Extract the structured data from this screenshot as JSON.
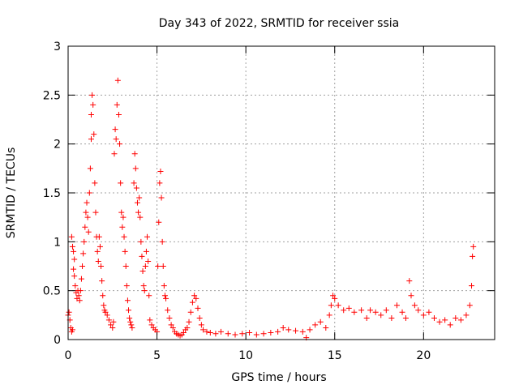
{
  "chart_data": {
    "type": "scatter",
    "title": "Day 343 of 2022, SRMTID for receiver ssia",
    "xlabel": "GPS time / hours",
    "ylabel": "SRMTID / TECUs",
    "xlim": [
      0,
      24
    ],
    "ylim": [
      0,
      3
    ],
    "x_ticks": [
      0,
      5,
      10,
      15,
      20
    ],
    "x_tick_labels": [
      "0",
      "5",
      "10",
      "15",
      "20"
    ],
    "y_ticks": [
      0,
      0.5,
      1,
      1.5,
      2,
      2.5,
      3
    ],
    "y_tick_labels": [
      "0",
      "0.5",
      "1",
      "1.5",
      "2",
      "2.5",
      "3"
    ],
    "grid": true,
    "marker": "+",
    "color": "#ff0000",
    "series": [
      {
        "name": "SRMTID",
        "points": [
          [
            0.0,
            0.25
          ],
          [
            0.05,
            0.28
          ],
          [
            0.1,
            0.2
          ],
          [
            0.15,
            0.12
          ],
          [
            0.2,
            0.08
          ],
          [
            0.25,
            0.1
          ],
          [
            0.2,
            1.05
          ],
          [
            0.25,
            0.95
          ],
          [
            0.3,
            0.9
          ],
          [
            0.35,
            0.82
          ],
          [
            0.3,
            0.72
          ],
          [
            0.35,
            0.65
          ],
          [
            0.4,
            0.55
          ],
          [
            0.45,
            0.48
          ],
          [
            0.5,
            0.42
          ],
          [
            0.55,
            0.5
          ],
          [
            0.6,
            0.45
          ],
          [
            0.65,
            0.4
          ],
          [
            0.7,
            0.5
          ],
          [
            0.75,
            0.62
          ],
          [
            0.8,
            0.75
          ],
          [
            0.85,
            0.88
          ],
          [
            0.9,
            1.0
          ],
          [
            0.95,
            1.15
          ],
          [
            1.0,
            1.3
          ],
          [
            1.05,
            1.4
          ],
          [
            1.1,
            1.25
          ],
          [
            1.15,
            1.1
          ],
          [
            1.2,
            1.5
          ],
          [
            1.25,
            1.75
          ],
          [
            1.3,
            2.05
          ],
          [
            1.3,
            2.3
          ],
          [
            1.35,
            2.5
          ],
          [
            1.4,
            2.4
          ],
          [
            1.45,
            2.1
          ],
          [
            1.5,
            1.6
          ],
          [
            1.55,
            1.3
          ],
          [
            1.6,
            1.05
          ],
          [
            1.65,
            0.9
          ],
          [
            1.7,
            0.8
          ],
          [
            1.75,
            1.05
          ],
          [
            1.8,
            0.95
          ],
          [
            1.85,
            0.75
          ],
          [
            1.9,
            0.6
          ],
          [
            1.95,
            0.45
          ],
          [
            2.0,
            0.35
          ],
          [
            2.05,
            0.3
          ],
          [
            2.1,
            0.28
          ],
          [
            2.2,
            0.25
          ],
          [
            2.3,
            0.2
          ],
          [
            2.4,
            0.15
          ],
          [
            2.5,
            0.12
          ],
          [
            2.55,
            0.18
          ],
          [
            2.6,
            1.9
          ],
          [
            2.65,
            2.15
          ],
          [
            2.7,
            2.05
          ],
          [
            2.75,
            2.4
          ],
          [
            2.8,
            2.65
          ],
          [
            2.85,
            2.3
          ],
          [
            2.9,
            2.0
          ],
          [
            2.95,
            1.6
          ],
          [
            3.0,
            1.3
          ],
          [
            3.05,
            1.15
          ],
          [
            3.1,
            1.25
          ],
          [
            3.15,
            1.05
          ],
          [
            3.2,
            0.9
          ],
          [
            3.25,
            0.75
          ],
          [
            3.3,
            0.55
          ],
          [
            3.35,
            0.4
          ],
          [
            3.4,
            0.3
          ],
          [
            3.45,
            0.22
          ],
          [
            3.5,
            0.18
          ],
          [
            3.55,
            0.15
          ],
          [
            3.6,
            0.12
          ],
          [
            3.7,
            1.6
          ],
          [
            3.75,
            1.9
          ],
          [
            3.8,
            1.75
          ],
          [
            3.85,
            1.55
          ],
          [
            3.9,
            1.4
          ],
          [
            3.95,
            1.3
          ],
          [
            4.0,
            1.45
          ],
          [
            4.05,
            1.25
          ],
          [
            4.1,
            1.0
          ],
          [
            4.15,
            0.85
          ],
          [
            4.2,
            0.7
          ],
          [
            4.25,
            0.55
          ],
          [
            4.3,
            0.5
          ],
          [
            4.35,
            0.75
          ],
          [
            4.4,
            0.9
          ],
          [
            4.45,
            1.05
          ],
          [
            4.5,
            0.8
          ],
          [
            4.55,
            0.45
          ],
          [
            4.6,
            0.2
          ],
          [
            4.7,
            0.15
          ],
          [
            4.8,
            0.12
          ],
          [
            4.9,
            0.1
          ],
          [
            5.0,
            0.08
          ],
          [
            5.05,
            0.75
          ],
          [
            5.1,
            1.2
          ],
          [
            5.15,
            1.6
          ],
          [
            5.2,
            1.72
          ],
          [
            5.25,
            1.45
          ],
          [
            5.3,
            1.0
          ],
          [
            5.35,
            0.75
          ],
          [
            5.4,
            0.55
          ],
          [
            5.45,
            0.45
          ],
          [
            5.5,
            0.42
          ],
          [
            5.6,
            0.3
          ],
          [
            5.7,
            0.22
          ],
          [
            5.8,
            0.15
          ],
          [
            5.9,
            0.12
          ],
          [
            6.0,
            0.08
          ],
          [
            6.1,
            0.06
          ],
          [
            6.2,
            0.05
          ],
          [
            6.3,
            0.04
          ],
          [
            6.4,
            0.05
          ],
          [
            6.5,
            0.07
          ],
          [
            6.6,
            0.1
          ],
          [
            6.7,
            0.12
          ],
          [
            6.8,
            0.18
          ],
          [
            6.9,
            0.28
          ],
          [
            7.0,
            0.38
          ],
          [
            7.1,
            0.45
          ],
          [
            7.2,
            0.42
          ],
          [
            7.3,
            0.32
          ],
          [
            7.4,
            0.22
          ],
          [
            7.5,
            0.15
          ],
          [
            7.6,
            0.1
          ],
          [
            7.8,
            0.08
          ],
          [
            8.0,
            0.07
          ],
          [
            8.3,
            0.06
          ],
          [
            8.6,
            0.08
          ],
          [
            9.0,
            0.06
          ],
          [
            9.4,
            0.05
          ],
          [
            9.8,
            0.06
          ],
          [
            10.2,
            0.07
          ],
          [
            10.6,
            0.05
          ],
          [
            11.0,
            0.06
          ],
          [
            11.4,
            0.07
          ],
          [
            11.8,
            0.08
          ],
          [
            12.1,
            0.12
          ],
          [
            12.4,
            0.1
          ],
          [
            12.8,
            0.09
          ],
          [
            13.2,
            0.08
          ],
          [
            13.4,
            0.02
          ],
          [
            13.6,
            0.1
          ],
          [
            13.9,
            0.15
          ],
          [
            14.2,
            0.18
          ],
          [
            14.5,
            0.12
          ],
          [
            14.7,
            0.25
          ],
          [
            14.8,
            0.35
          ],
          [
            14.9,
            0.45
          ],
          [
            15.0,
            0.42
          ],
          [
            15.2,
            0.35
          ],
          [
            15.5,
            0.3
          ],
          [
            15.8,
            0.32
          ],
          [
            16.1,
            0.28
          ],
          [
            16.5,
            0.3
          ],
          [
            16.8,
            0.22
          ],
          [
            17.0,
            0.3
          ],
          [
            17.3,
            0.28
          ],
          [
            17.6,
            0.25
          ],
          [
            17.9,
            0.3
          ],
          [
            18.2,
            0.22
          ],
          [
            18.5,
            0.35
          ],
          [
            18.8,
            0.28
          ],
          [
            19.0,
            0.22
          ],
          [
            19.2,
            0.6
          ],
          [
            19.3,
            0.45
          ],
          [
            19.5,
            0.35
          ],
          [
            19.7,
            0.3
          ],
          [
            20.0,
            0.25
          ],
          [
            20.3,
            0.28
          ],
          [
            20.6,
            0.22
          ],
          [
            20.9,
            0.18
          ],
          [
            21.2,
            0.2
          ],
          [
            21.5,
            0.15
          ],
          [
            21.8,
            0.22
          ],
          [
            22.1,
            0.2
          ],
          [
            22.4,
            0.25
          ],
          [
            22.6,
            0.35
          ],
          [
            22.7,
            0.55
          ],
          [
            22.75,
            0.85
          ],
          [
            22.8,
            0.95
          ]
        ]
      }
    ]
  }
}
